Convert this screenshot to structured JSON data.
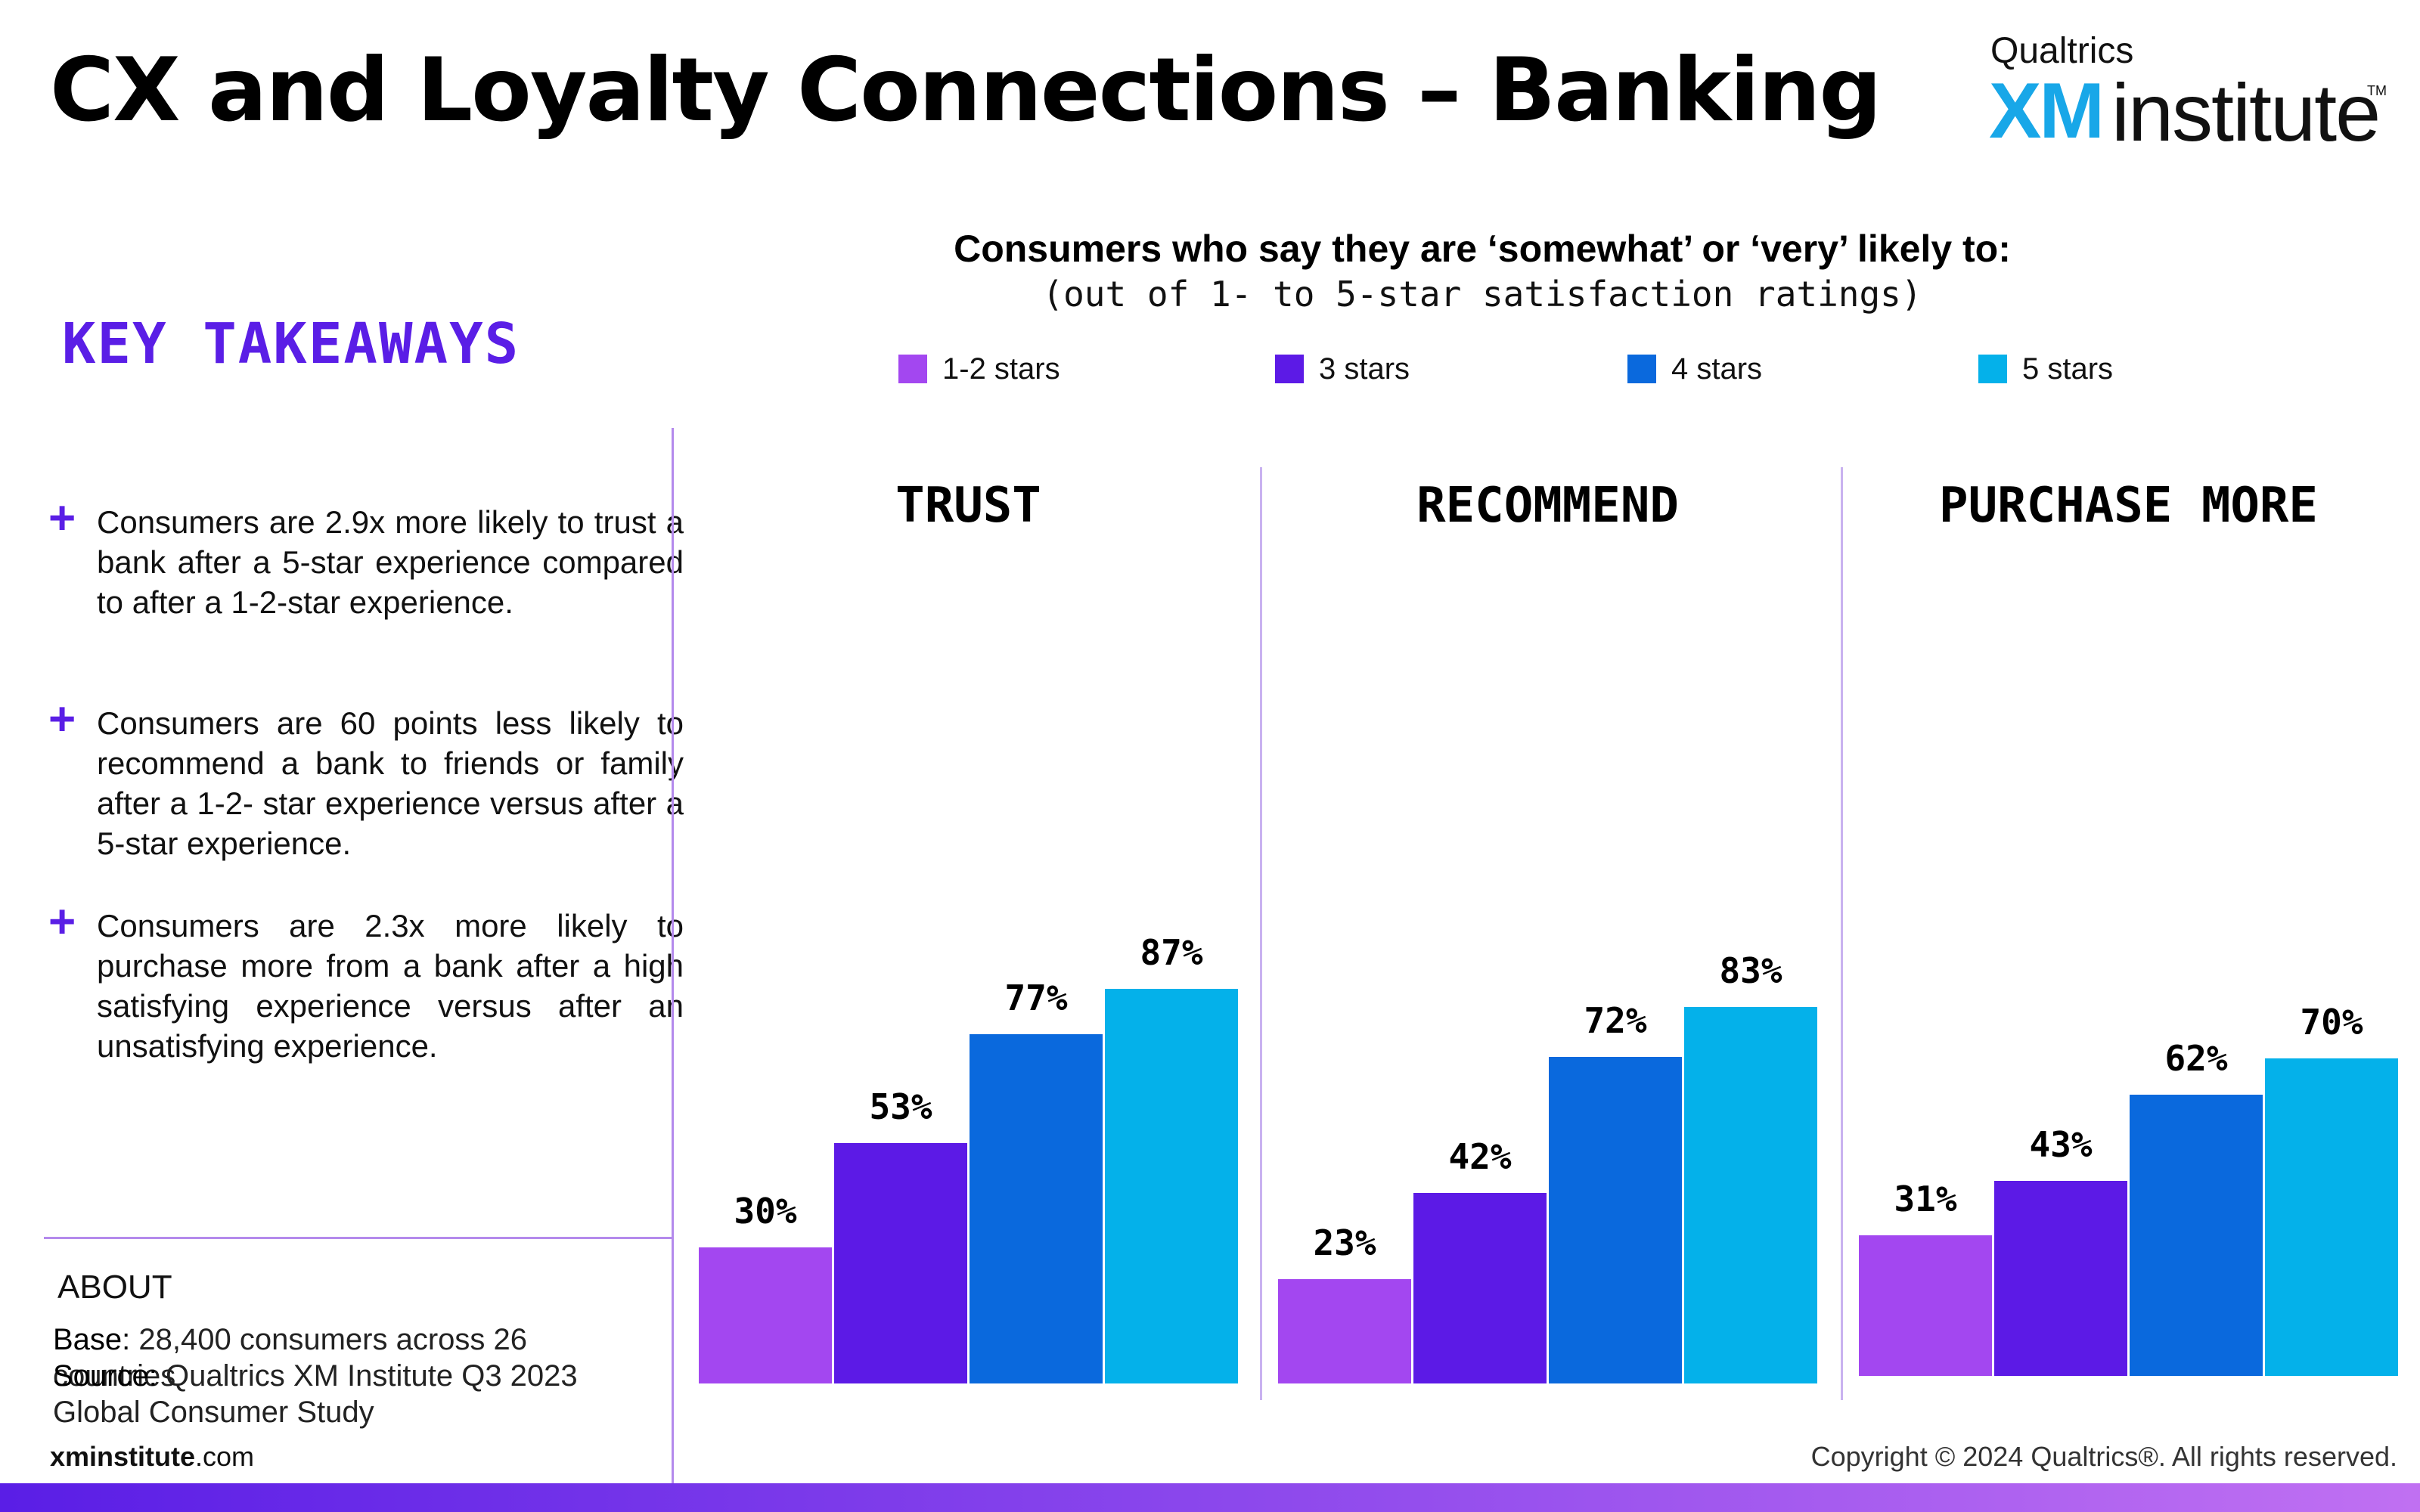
{
  "header": {
    "title": "CX and Loyalty Connections – Banking",
    "logo": {
      "brand": "Qualtrics",
      "xm": "XM",
      "word": "institute",
      "tm": "TM"
    }
  },
  "takeaways": {
    "heading": "KEY TAKEAWAYS",
    "items": [
      "Consumers are 2.9x more likely to trust a bank after a 5-star experience compared to after a 1-2-star experience.",
      "Consumers are 60 points less likely to recommend a bank to friends or family after a 1-2- star experience versus after a 5-star experience.",
      "Consumers are 2.3x more likely to purchase more from a bank after a high satisfying experience versus after an unsatisfying experience."
    ]
  },
  "about": {
    "heading": "ABOUT",
    "base_label": "Base:",
    "base_value": " 28,400 consumers across 26 countries",
    "source_label": "Source:",
    "source_value": " Qualtrics XM Institute Q3 2023 Global Consumer Study"
  },
  "footer": {
    "site_strong": "xminstitute",
    "site_rest": ".com",
    "copyright": "Copyright © 2024 Qualtrics®. All rights reserved."
  },
  "chart_data": {
    "type": "bar",
    "title": "Consumers who say they are ‘somewhat’ or ‘very’ likely to:",
    "subtitle": "(out of 1- to 5-star satisfaction ratings)",
    "legend_position": "top",
    "categories": [
      "TRUST",
      "RECOMMEND",
      "PURCHASE MORE"
    ],
    "series": [
      {
        "name": "1-2 stars",
        "color": "#a347f0",
        "values": [
          30,
          23,
          31
        ]
      },
      {
        "name": "3 stars",
        "color": "#5c1ae6",
        "values": [
          53,
          42,
          43
        ]
      },
      {
        "name": "4 stars",
        "color": "#0a69dd",
        "values": [
          77,
          72,
          62
        ]
      },
      {
        "name": "5 stars",
        "color": "#04b1ea",
        "values": [
          87,
          83,
          70
        ]
      }
    ],
    "value_suffix": "%",
    "ylim": [
      0,
      100
    ],
    "grid": false
  }
}
